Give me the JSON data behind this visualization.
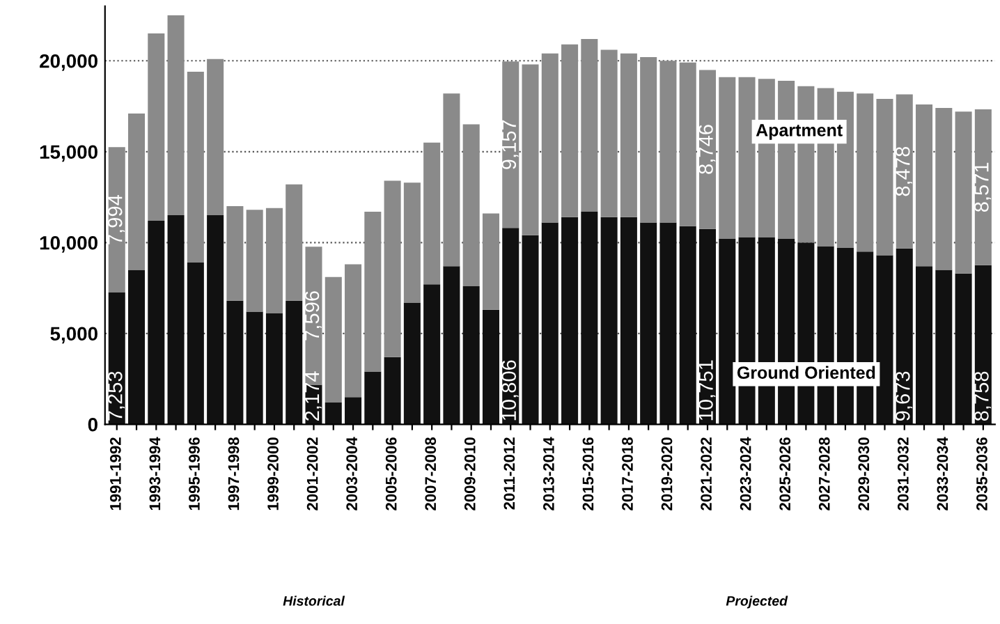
{
  "chart_data": {
    "type": "bar",
    "stacked": true,
    "categories": [
      "1991-1992",
      null,
      "1993-1994",
      null,
      "1995-1996",
      null,
      "1997-1998",
      null,
      "1999-2000",
      null,
      "2001-2002",
      null,
      "2003-2004",
      null,
      "2005-2006",
      null,
      "2007-2008",
      null,
      "2009-2010",
      null,
      "2011-2012",
      null,
      "2013-2014",
      null,
      "2015-2016",
      null,
      "2017-2018",
      null,
      "2019-2020",
      null,
      "2021-2022",
      null,
      "2023-2024",
      null,
      "2025-2026",
      null,
      "2027-2028",
      null,
      "2029-2030",
      null,
      "2031-2032",
      null,
      "2033-2034",
      null,
      "2035-2036"
    ],
    "series": [
      {
        "name": "Ground Oriented",
        "color": "#111111",
        "values": [
          7253,
          8500,
          11200,
          11500,
          8900,
          11500,
          6800,
          6200,
          6100,
          6800,
          2174,
          1200,
          1500,
          2900,
          3700,
          6700,
          7700,
          8700,
          7600,
          6300,
          10806,
          10400,
          11100,
          11400,
          11700,
          11400,
          11400,
          11100,
          11100,
          10900,
          10751,
          10200,
          10300,
          10300,
          10200,
          10000,
          9800,
          9700,
          9500,
          9300,
          9673,
          8700,
          8500,
          8300,
          8758
        ],
        "value_labels": [
          "7,253",
          null,
          null,
          null,
          null,
          null,
          null,
          null,
          null,
          null,
          "2,174",
          null,
          null,
          null,
          null,
          null,
          null,
          null,
          null,
          null,
          "10,806",
          null,
          null,
          null,
          null,
          null,
          null,
          null,
          null,
          null,
          "10,751",
          null,
          null,
          null,
          null,
          null,
          null,
          null,
          null,
          null,
          "9,673",
          null,
          null,
          null,
          "8,758"
        ]
      },
      {
        "name": "Apartment",
        "color": "#8a8a8a",
        "values": [
          7994,
          8600,
          10300,
          11000,
          10500,
          8600,
          5200,
          5600,
          5800,
          6400,
          7596,
          6900,
          7300,
          8800,
          9700,
          6600,
          7800,
          9500,
          8900,
          5300,
          9157,
          9400,
          9300,
          9500,
          9500,
          9200,
          9000,
          9100,
          8900,
          9000,
          8746,
          8900,
          8800,
          8700,
          8700,
          8600,
          8700,
          8600,
          8700,
          8600,
          8478,
          8900,
          8900,
          8900,
          8571
        ],
        "value_labels": [
          "7,994",
          null,
          null,
          null,
          null,
          null,
          null,
          null,
          null,
          null,
          "7,596",
          null,
          null,
          null,
          null,
          null,
          null,
          null,
          null,
          null,
          "9,157",
          null,
          null,
          null,
          null,
          null,
          null,
          null,
          null,
          null,
          "8,746",
          null,
          null,
          null,
          null,
          null,
          null,
          null,
          null,
          null,
          "8,478",
          null,
          null,
          null,
          "8,571"
        ]
      }
    ],
    "ylim": [
      0,
      23000
    ],
    "yticks": [
      {
        "value": 0,
        "label": "0"
      },
      {
        "value": 5000,
        "label": "5,000"
      },
      {
        "value": 10000,
        "label": "10,000"
      },
      {
        "value": 15000,
        "label": "15,000"
      },
      {
        "value": 20000,
        "label": "20,000"
      }
    ],
    "grid": "y",
    "legend": false,
    "annotations": [
      "Historical",
      "Projected"
    ]
  }
}
